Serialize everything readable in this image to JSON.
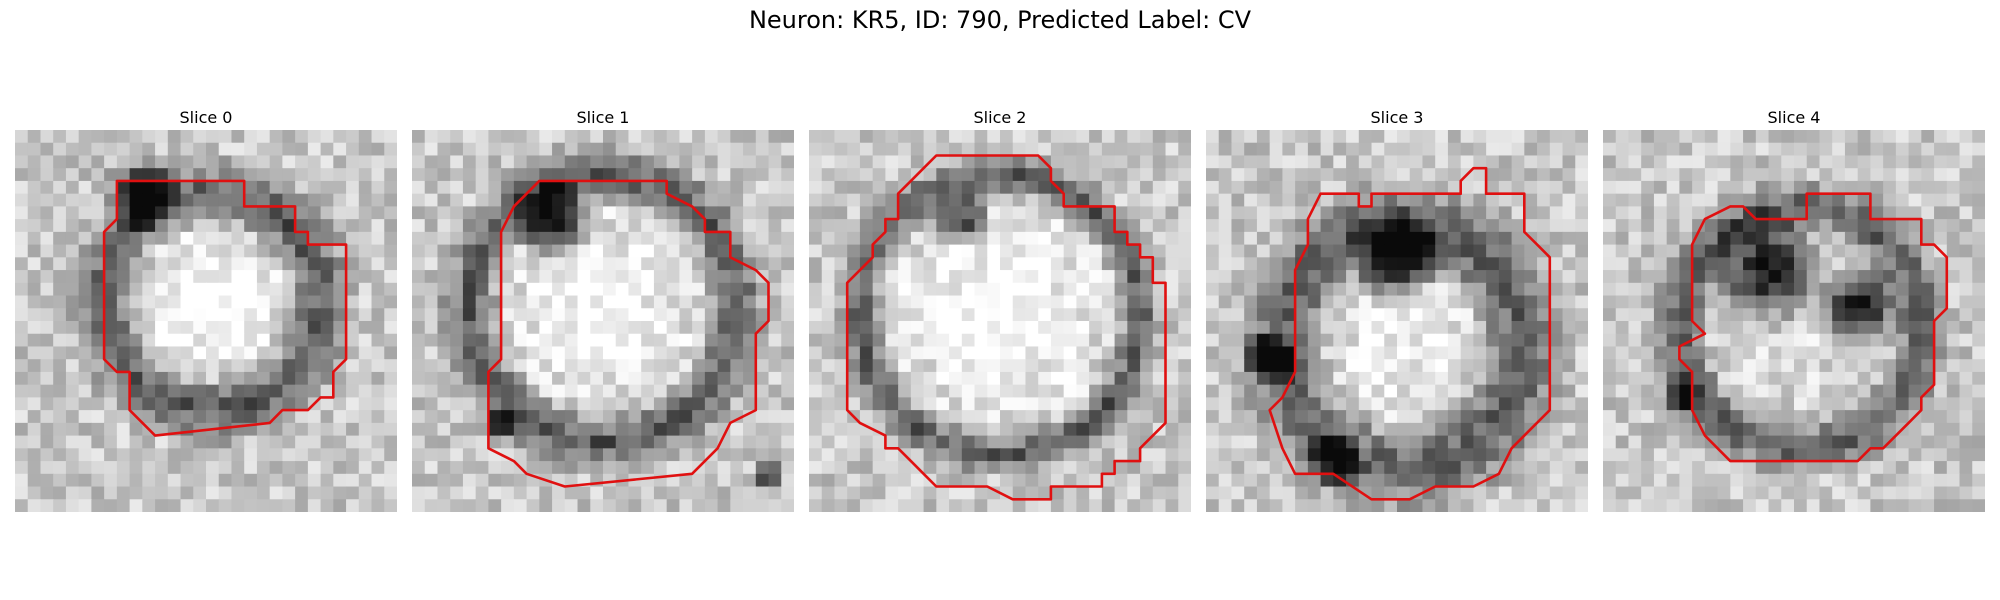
{
  "figure": {
    "title": "Neuron: KR5, ID: 790, Predicted Label: CV"
  },
  "colors": {
    "contour": "#e01010",
    "background": "#ffffff"
  },
  "panels": [
    {
      "title": "Slice 0",
      "image": "grayscale-microscopy-slice",
      "outline": "red-segmentation-contour"
    },
    {
      "title": "Slice 1",
      "image": "grayscale-microscopy-slice",
      "outline": "red-segmentation-contour"
    },
    {
      "title": "Slice 2",
      "image": "grayscale-microscopy-slice",
      "outline": "red-segmentation-contour"
    },
    {
      "title": "Slice 3",
      "image": "grayscale-microscopy-slice",
      "outline": "red-segmentation-contour"
    },
    {
      "title": "Slice 4",
      "image": "grayscale-microscopy-slice",
      "outline": "red-segmentation-contour"
    }
  ]
}
